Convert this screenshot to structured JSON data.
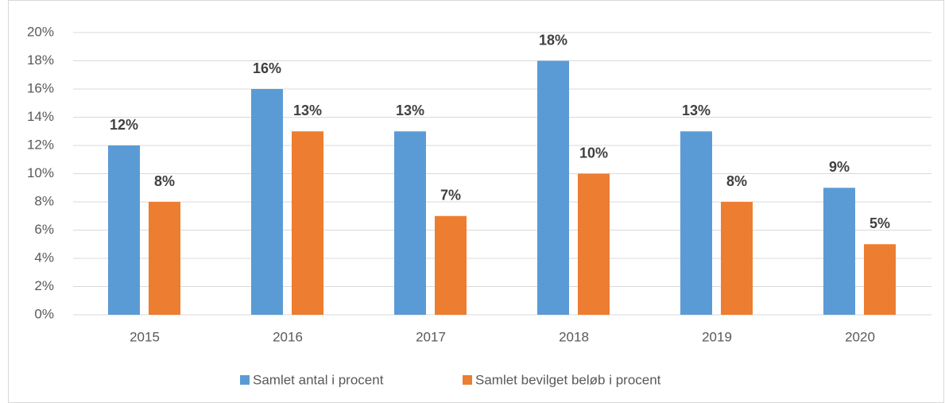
{
  "chart_data": {
    "type": "bar",
    "categories": [
      "2015",
      "2016",
      "2017",
      "2018",
      "2019",
      "2020"
    ],
    "series": [
      {
        "name": "Samlet antal i procent",
        "color": "#5b9bd5",
        "values": [
          12,
          16,
          13,
          18,
          13,
          9
        ],
        "value_labels": [
          "12%",
          "16%",
          "13%",
          "18%",
          "13%",
          "9%"
        ]
      },
      {
        "name": "Samlet bevilget beløb i procent",
        "color": "#ed7d31",
        "values": [
          8,
          13,
          7,
          10,
          8,
          5
        ],
        "value_labels": [
          "8%",
          "13%",
          "7%",
          "10%",
          "8%",
          "5%"
        ]
      }
    ],
    "ylim": [
      0,
      20
    ],
    "yticks": [
      {
        "value": 0,
        "label": "0%"
      },
      {
        "value": 2,
        "label": "2%"
      },
      {
        "value": 4,
        "label": "4%"
      },
      {
        "value": 6,
        "label": "6%"
      },
      {
        "value": 8,
        "label": "8%"
      },
      {
        "value": 10,
        "label": "10%"
      },
      {
        "value": 12,
        "label": "12%"
      },
      {
        "value": 14,
        "label": "14%"
      },
      {
        "value": 16,
        "label": "16%"
      },
      {
        "value": 18,
        "label": "18%"
      },
      {
        "value": 20,
        "label": "20%"
      }
    ],
    "grid": true,
    "legend": "bottom"
  }
}
